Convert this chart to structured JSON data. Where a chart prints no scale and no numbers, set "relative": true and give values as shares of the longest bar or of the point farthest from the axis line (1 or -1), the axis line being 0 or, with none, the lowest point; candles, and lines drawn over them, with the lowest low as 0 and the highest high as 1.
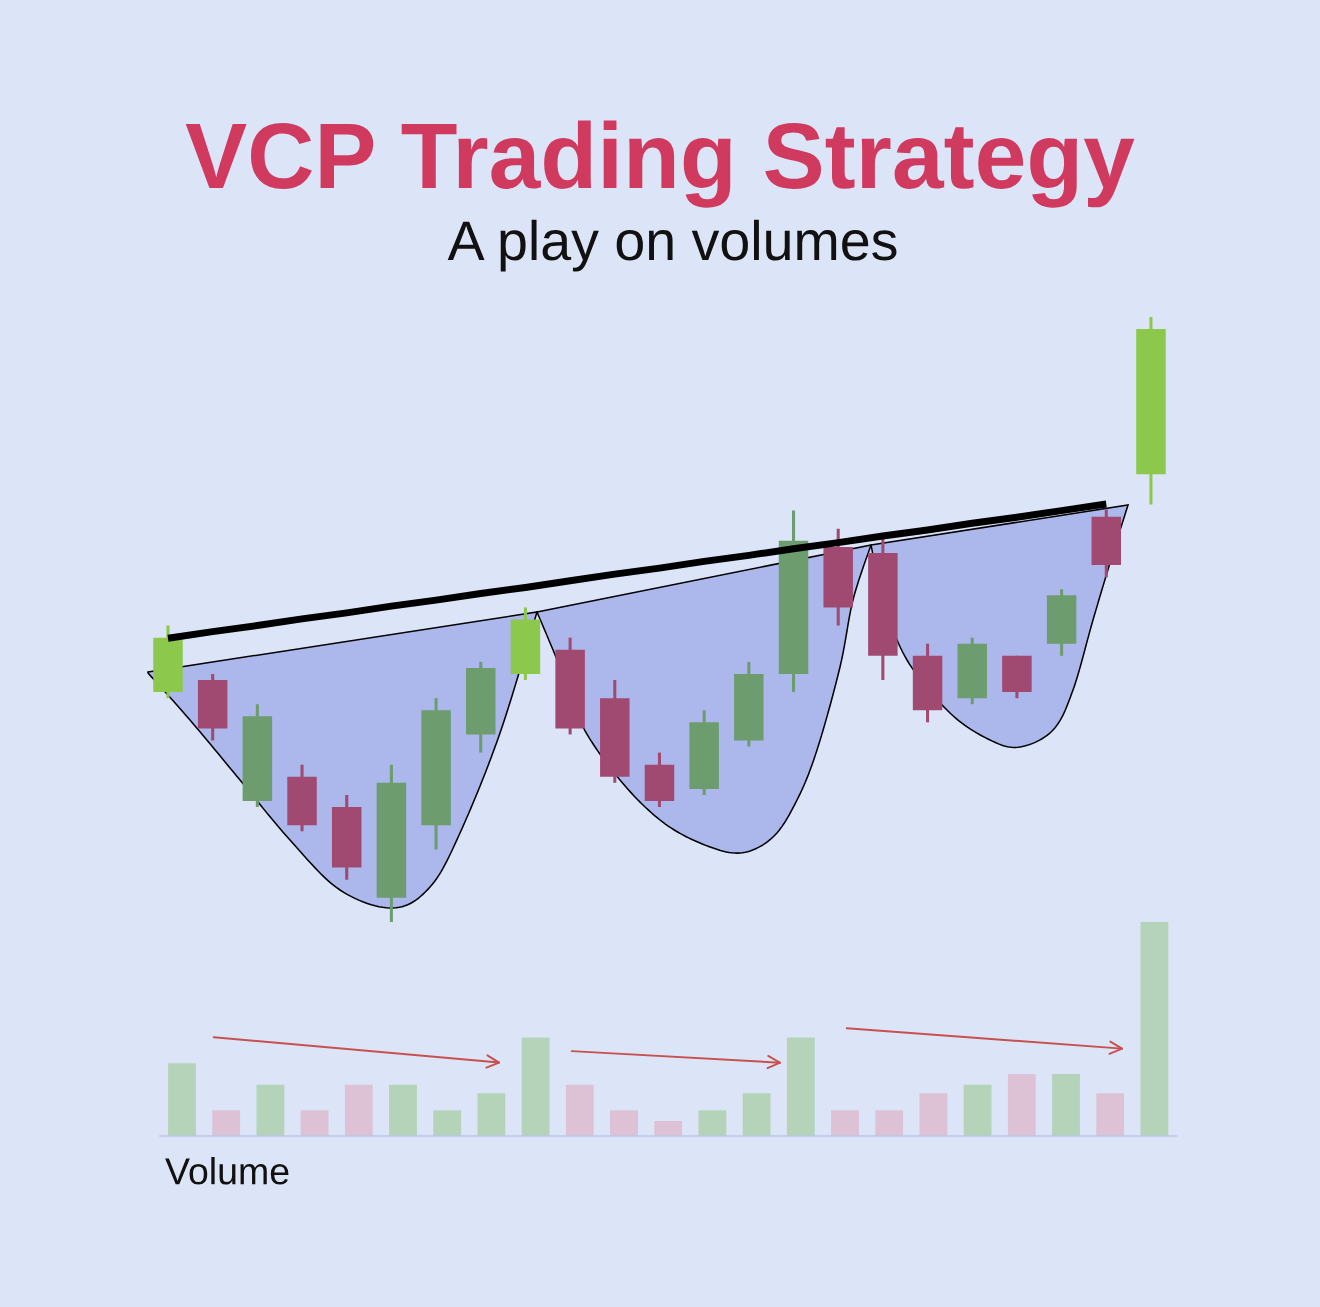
{
  "chart_data": [
    {
      "type": "candlestick",
      "title": "VCP Trading Strategy",
      "subtitle": "A play on volumes",
      "relative": true,
      "categories": [
        null,
        null,
        null,
        null,
        null,
        null,
        null,
        null,
        null,
        null,
        null,
        null,
        null,
        null,
        null,
        null,
        null,
        null,
        null,
        null,
        null,
        null,
        null
      ],
      "ohlc": [
        [
          0.38,
          0.49,
          0.37,
          0.47
        ],
        [
          0.4,
          0.41,
          0.3,
          0.32
        ],
        [
          0.2,
          0.36,
          0.19,
          0.34
        ],
        [
          0.24,
          0.26,
          0.15,
          0.16
        ],
        [
          0.19,
          0.21,
          0.07,
          0.09
        ],
        [
          0.04,
          0.26,
          0,
          0.23
        ],
        [
          0.16,
          0.37,
          0.12,
          0.35
        ],
        [
          0.31,
          0.43,
          0.28,
          0.42
        ],
        [
          0.41,
          0.52,
          0.4,
          0.5
        ],
        [
          0.45,
          0.47,
          0.31,
          0.32
        ],
        [
          0.37,
          0.4,
          0.23,
          0.24
        ],
        [
          0.26,
          0.28,
          0.19,
          0.2
        ],
        [
          0.22,
          0.35,
          0.21,
          0.33
        ],
        [
          0.3,
          0.43,
          0.29,
          0.41
        ],
        [
          0.41,
          0.68,
          0.38,
          0.63
        ],
        [
          0.62,
          0.65,
          0.49,
          0.52
        ],
        [
          0.61,
          0.633,
          0.4,
          0.44
        ],
        [
          0.44,
          0.46,
          0.33,
          0.35
        ],
        [
          0.37,
          0.47,
          0.36,
          0.46
        ],
        [
          0.44,
          0.44,
          0.37,
          0.38
        ],
        [
          0.46,
          0.55,
          0.44,
          0.54
        ],
        [
          0.67,
          0.682,
          0.57,
          0.59
        ],
        [
          0.74,
          1,
          0.69,
          0.98
        ]
      ],
      "colors": [
        "#8cc84b",
        "#a04a72",
        "#6d9d6f",
        "#a04a72",
        "#a04a72",
        "#6d9d6f",
        "#6d9d6f",
        "#6d9d6f",
        "#8cc84b",
        "#a04a72",
        "#a04a72",
        "#a04a72",
        "#6d9d6f",
        "#6d9d6f",
        "#6d9d6f",
        "#a04a72",
        "#a04a72",
        "#a04a72",
        "#6d9d6f",
        "#a04a72",
        "#6d9d6f",
        "#a04a72",
        "#8cc84b"
      ],
      "series": [
        {
          "type": "line",
          "color": "#000000",
          "values": [
            0.469,
            0.48,
            0.49,
            0.501,
            0.511,
            0.522,
            0.532,
            0.543,
            0.553,
            0.564,
            0.575,
            0.585,
            0.596,
            0.606,
            0.617,
            0.627,
            0.638,
            0.648,
            0.659,
            0.669,
            0.68,
            0.691,
            null
          ]
        }
      ]
    },
    {
      "type": "bar",
      "xlabel": "Volume",
      "relative": true,
      "categories": [
        null,
        null,
        null,
        null,
        null,
        null,
        null,
        null,
        null,
        null,
        null,
        null,
        null,
        null,
        null,
        null,
        null,
        null,
        null,
        null,
        null,
        null,
        null
      ],
      "values": [
        0.34,
        0.12,
        0.24,
        0.12,
        0.24,
        0.24,
        0.12,
        0.2,
        0.46,
        0.24,
        0.12,
        0.07,
        0.12,
        0.2,
        0.46,
        0.12,
        0.12,
        0.2,
        0.24,
        0.29,
        0.29,
        0.2,
        1
      ],
      "colors": [
        "#b5d3b9",
        "#dcc2d4",
        "#b5d3b9",
        "#dcc2d4",
        "#dcc2d4",
        "#b5d3b9",
        "#b5d3b9",
        "#b5d3b9",
        "#b5d3b9",
        "#dcc2d4",
        "#dcc2d4",
        "#dcc2d4",
        "#b5d3b9",
        "#b5d3b9",
        "#b5d3b9",
        "#dcc2d4",
        "#dcc2d4",
        "#dcc2d4",
        "#b5d3b9",
        "#dcc2d4",
        "#b5d3b9",
        "#dcc2d4",
        "#b5d3b9"
      ]
    }
  ]
}
